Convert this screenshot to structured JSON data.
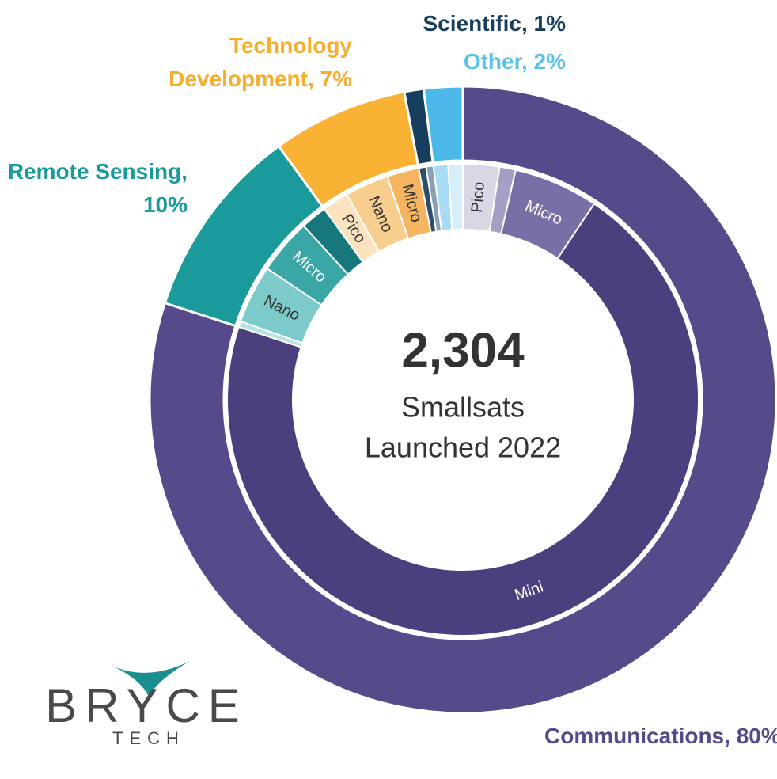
{
  "chart_data": {
    "type": "sunburst",
    "center_value": "2,304",
    "center_label": [
      "Smallsats",
      "Launched 2022"
    ],
    "values": [
      80,
      10,
      7,
      1,
      2
    ],
    "value_labels": [
      "Communications, 80%",
      "Remote Sensing, 10%",
      "Technology Development, 7%",
      "Scientific, 1%",
      "Other, 2%"
    ],
    "colors": [
      "#574a8a",
      "#1a9a9a",
      "#f9b233",
      "#173e5c",
      "#4cb8e8"
    ],
    "label_colors": [
      "#574a8a",
      "#1a9a9a",
      "#f6ae2d",
      "#173e5c",
      "#5bc0eb"
    ],
    "children": [
      {
        "categories": [
          "Pico",
          null,
          "Micro",
          "Mini"
        ],
        "values": [
          2.5,
          1.1,
          5.8,
          70.6
        ],
        "colors": [
          "#d9d6e6",
          "#a59fc4",
          "#7a6ea6",
          "#4b3f7e"
        ]
      },
      {
        "categories": [
          null,
          "Nano",
          "Micro",
          null
        ],
        "values": [
          0.4,
          4.0,
          3.8,
          1.8
        ],
        "colors": [
          "#b9e2e2",
          "#7dcaca",
          "#3aa6a6",
          "#17787c"
        ]
      },
      {
        "categories": [
          "Pico",
          "Nano",
          "Micro"
        ],
        "values": [
          1.8,
          3.0,
          2.2
        ],
        "colors": [
          "#fbe3c0",
          "#f8ce8e",
          "#f5b560"
        ]
      },
      {
        "categories": [
          null,
          null
        ],
        "values": [
          0.5,
          0.5
        ],
        "colors": [
          "#2c4e6c",
          "#8aa0b4"
        ]
      },
      {
        "categories": [
          null,
          null
        ],
        "values": [
          1.0,
          1.0
        ],
        "colors": [
          "#a9dcf4",
          "#d5eef9"
        ]
      }
    ]
  },
  "logo": {
    "name": "BRYCE",
    "sub": "TECH"
  }
}
